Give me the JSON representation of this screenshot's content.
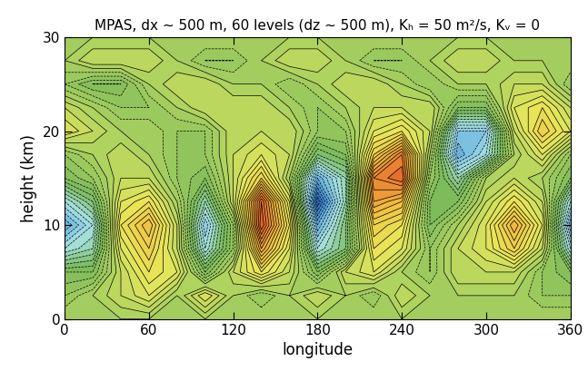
{
  "chart_data": {
    "type": "contour",
    "title": "MPAS, dx ~ 500 m, 60 levels (dz ~ 500 m), Kₕ = 50 m²/s, Kᵥ = 0",
    "x_label": "longitude",
    "y_label": "height (km)",
    "x": [
      0,
      20,
      40,
      60,
      80,
      100,
      120,
      140,
      160,
      180,
      200,
      220,
      240,
      260,
      280,
      300,
      320,
      340,
      360
    ],
    "y": [
      0,
      2.5,
      5,
      7.5,
      10,
      12.5,
      15,
      17.5,
      20,
      22.5,
      25,
      27.5,
      30
    ],
    "values": [
      [
        0,
        0,
        0,
        0,
        0,
        0,
        0,
        0,
        0,
        0,
        0,
        0,
        0,
        0,
        0,
        0,
        0,
        0,
        0
      ],
      [
        -0.1,
        0,
        0.1,
        0.2,
        0,
        0.2,
        0,
        -0.1,
        0,
        0.1,
        0,
        -0.1,
        0.1,
        0,
        0,
        0,
        0,
        -0.1,
        -0.1
      ],
      [
        -0.2,
        -0.2,
        0.1,
        0.3,
        0.2,
        -0.2,
        0.1,
        0.3,
        0.1,
        -0.2,
        0.1,
        0.2,
        0,
        -0.1,
        0.1,
        0.1,
        0.1,
        -0.1,
        -0.2
      ],
      [
        -0.5,
        -0.4,
        0.2,
        0.4,
        0.1,
        -0.5,
        -0.1,
        0.6,
        0.2,
        -0.5,
        -0.3,
        0.3,
        0.2,
        -0.1,
        0.1,
        0.2,
        0.4,
        0.1,
        -0.5
      ],
      [
        -0.7,
        -0.5,
        0.3,
        0.5,
        0.1,
        -0.6,
        -0.1,
        0.85,
        0.3,
        -0.7,
        -0.3,
        0.4,
        0.3,
        -0.2,
        0,
        0.2,
        0.55,
        0.2,
        -0.7
      ],
      [
        -0.5,
        -0.3,
        0.2,
        0.3,
        0,
        -0.4,
        0.1,
        0.8,
        0.2,
        -0.95,
        -0.4,
        0.6,
        0.5,
        -0.2,
        -0.2,
        0.1,
        0.3,
        0.1,
        -0.5
      ],
      [
        -0.2,
        -0.1,
        0.1,
        0.1,
        -0.1,
        -0.2,
        0.1,
        0.4,
        0,
        -0.7,
        -0.4,
        0.7,
        0.8,
        -0.1,
        -0.4,
        0,
        0.1,
        0,
        -0.2
      ],
      [
        -0.1,
        0,
        0.1,
        0,
        -0.1,
        -0.1,
        0.1,
        0.2,
        0.1,
        -0.3,
        -0.2,
        0.4,
        0.7,
        0,
        -0.7,
        -0.5,
        0,
        0.2,
        -0.1
      ],
      [
        0.2,
        0.1,
        0,
        0,
        -0.1,
        -0.1,
        0.1,
        0.1,
        0.1,
        -0.1,
        -0.1,
        0.2,
        0.3,
        0.1,
        -0.6,
        -0.6,
        0.1,
        0.4,
        0.2
      ],
      [
        0.1,
        0,
        -0.1,
        -0.1,
        0,
        0.1,
        0.1,
        0.1,
        0,
        -0.1,
        0,
        0.1,
        0.1,
        0.1,
        -0.2,
        -0.2,
        0.2,
        0.3,
        0.1
      ],
      [
        -0.1,
        -0.2,
        -0.2,
        0,
        0.1,
        0.1,
        0,
        0,
        -0.1,
        0,
        0.1,
        0.1,
        0,
        -0.1,
        0,
        0,
        0.1,
        0.1,
        -0.1
      ],
      [
        0,
        0.1,
        0.1,
        0.1,
        0,
        -0.1,
        -0.1,
        0,
        0.1,
        0.1,
        0,
        -0.1,
        -0.1,
        0,
        0.1,
        0.1,
        0,
        0,
        0
      ],
      [
        0,
        0,
        0,
        0,
        0,
        0,
        0,
        0,
        0,
        0,
        0,
        0,
        0,
        0,
        0,
        0,
        0,
        0,
        0
      ]
    ],
    "zlim": [
      -1,
      1
    ],
    "xlim": [
      0,
      360
    ],
    "xticks": [
      0,
      60,
      120,
      180,
      240,
      300,
      360
    ],
    "ylim": [
      0,
      30
    ],
    "yticks": [
      0,
      10,
      20,
      30
    ]
  }
}
